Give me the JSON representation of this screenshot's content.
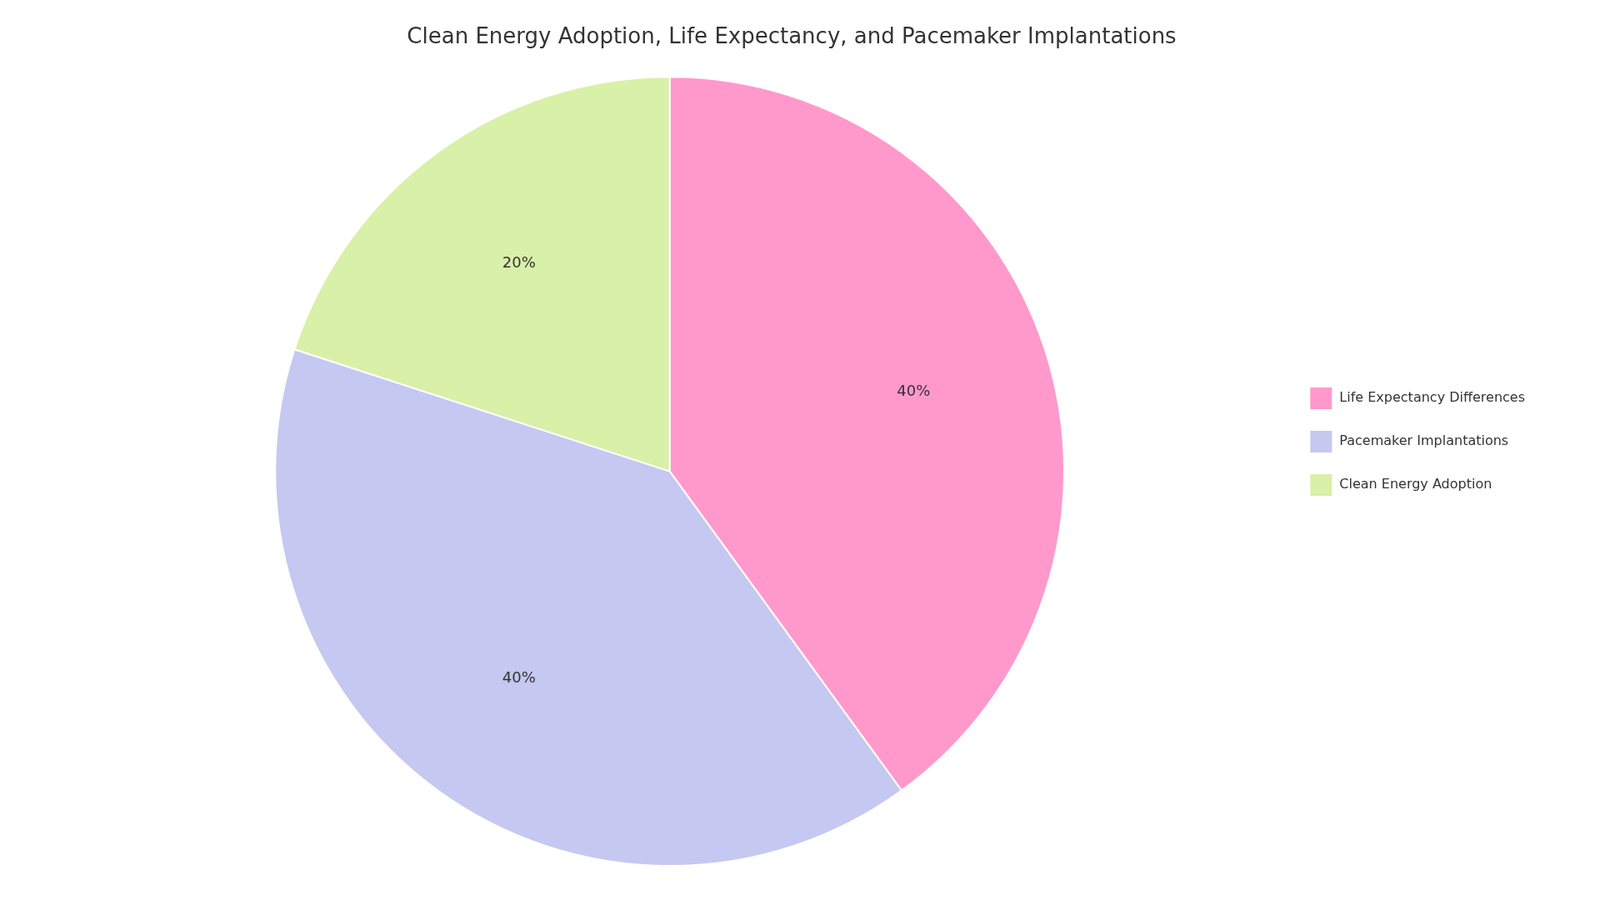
{
  "chart_data": {
    "type": "pie",
    "title": "Clean Energy Adoption, Life Expectancy, and Pacemaker Implantations",
    "categories": [
      "Life Expectancy Differences",
      "Pacemaker Implantations",
      "Clean Energy Adoption"
    ],
    "values": [
      40,
      40,
      20
    ],
    "value_labels": [
      "40%",
      "40%",
      "20%"
    ],
    "colors": [
      "#FF99CC",
      "#C5C8F0",
      "#D8F0A8"
    ],
    "data_labels": true,
    "legend": "right"
  }
}
